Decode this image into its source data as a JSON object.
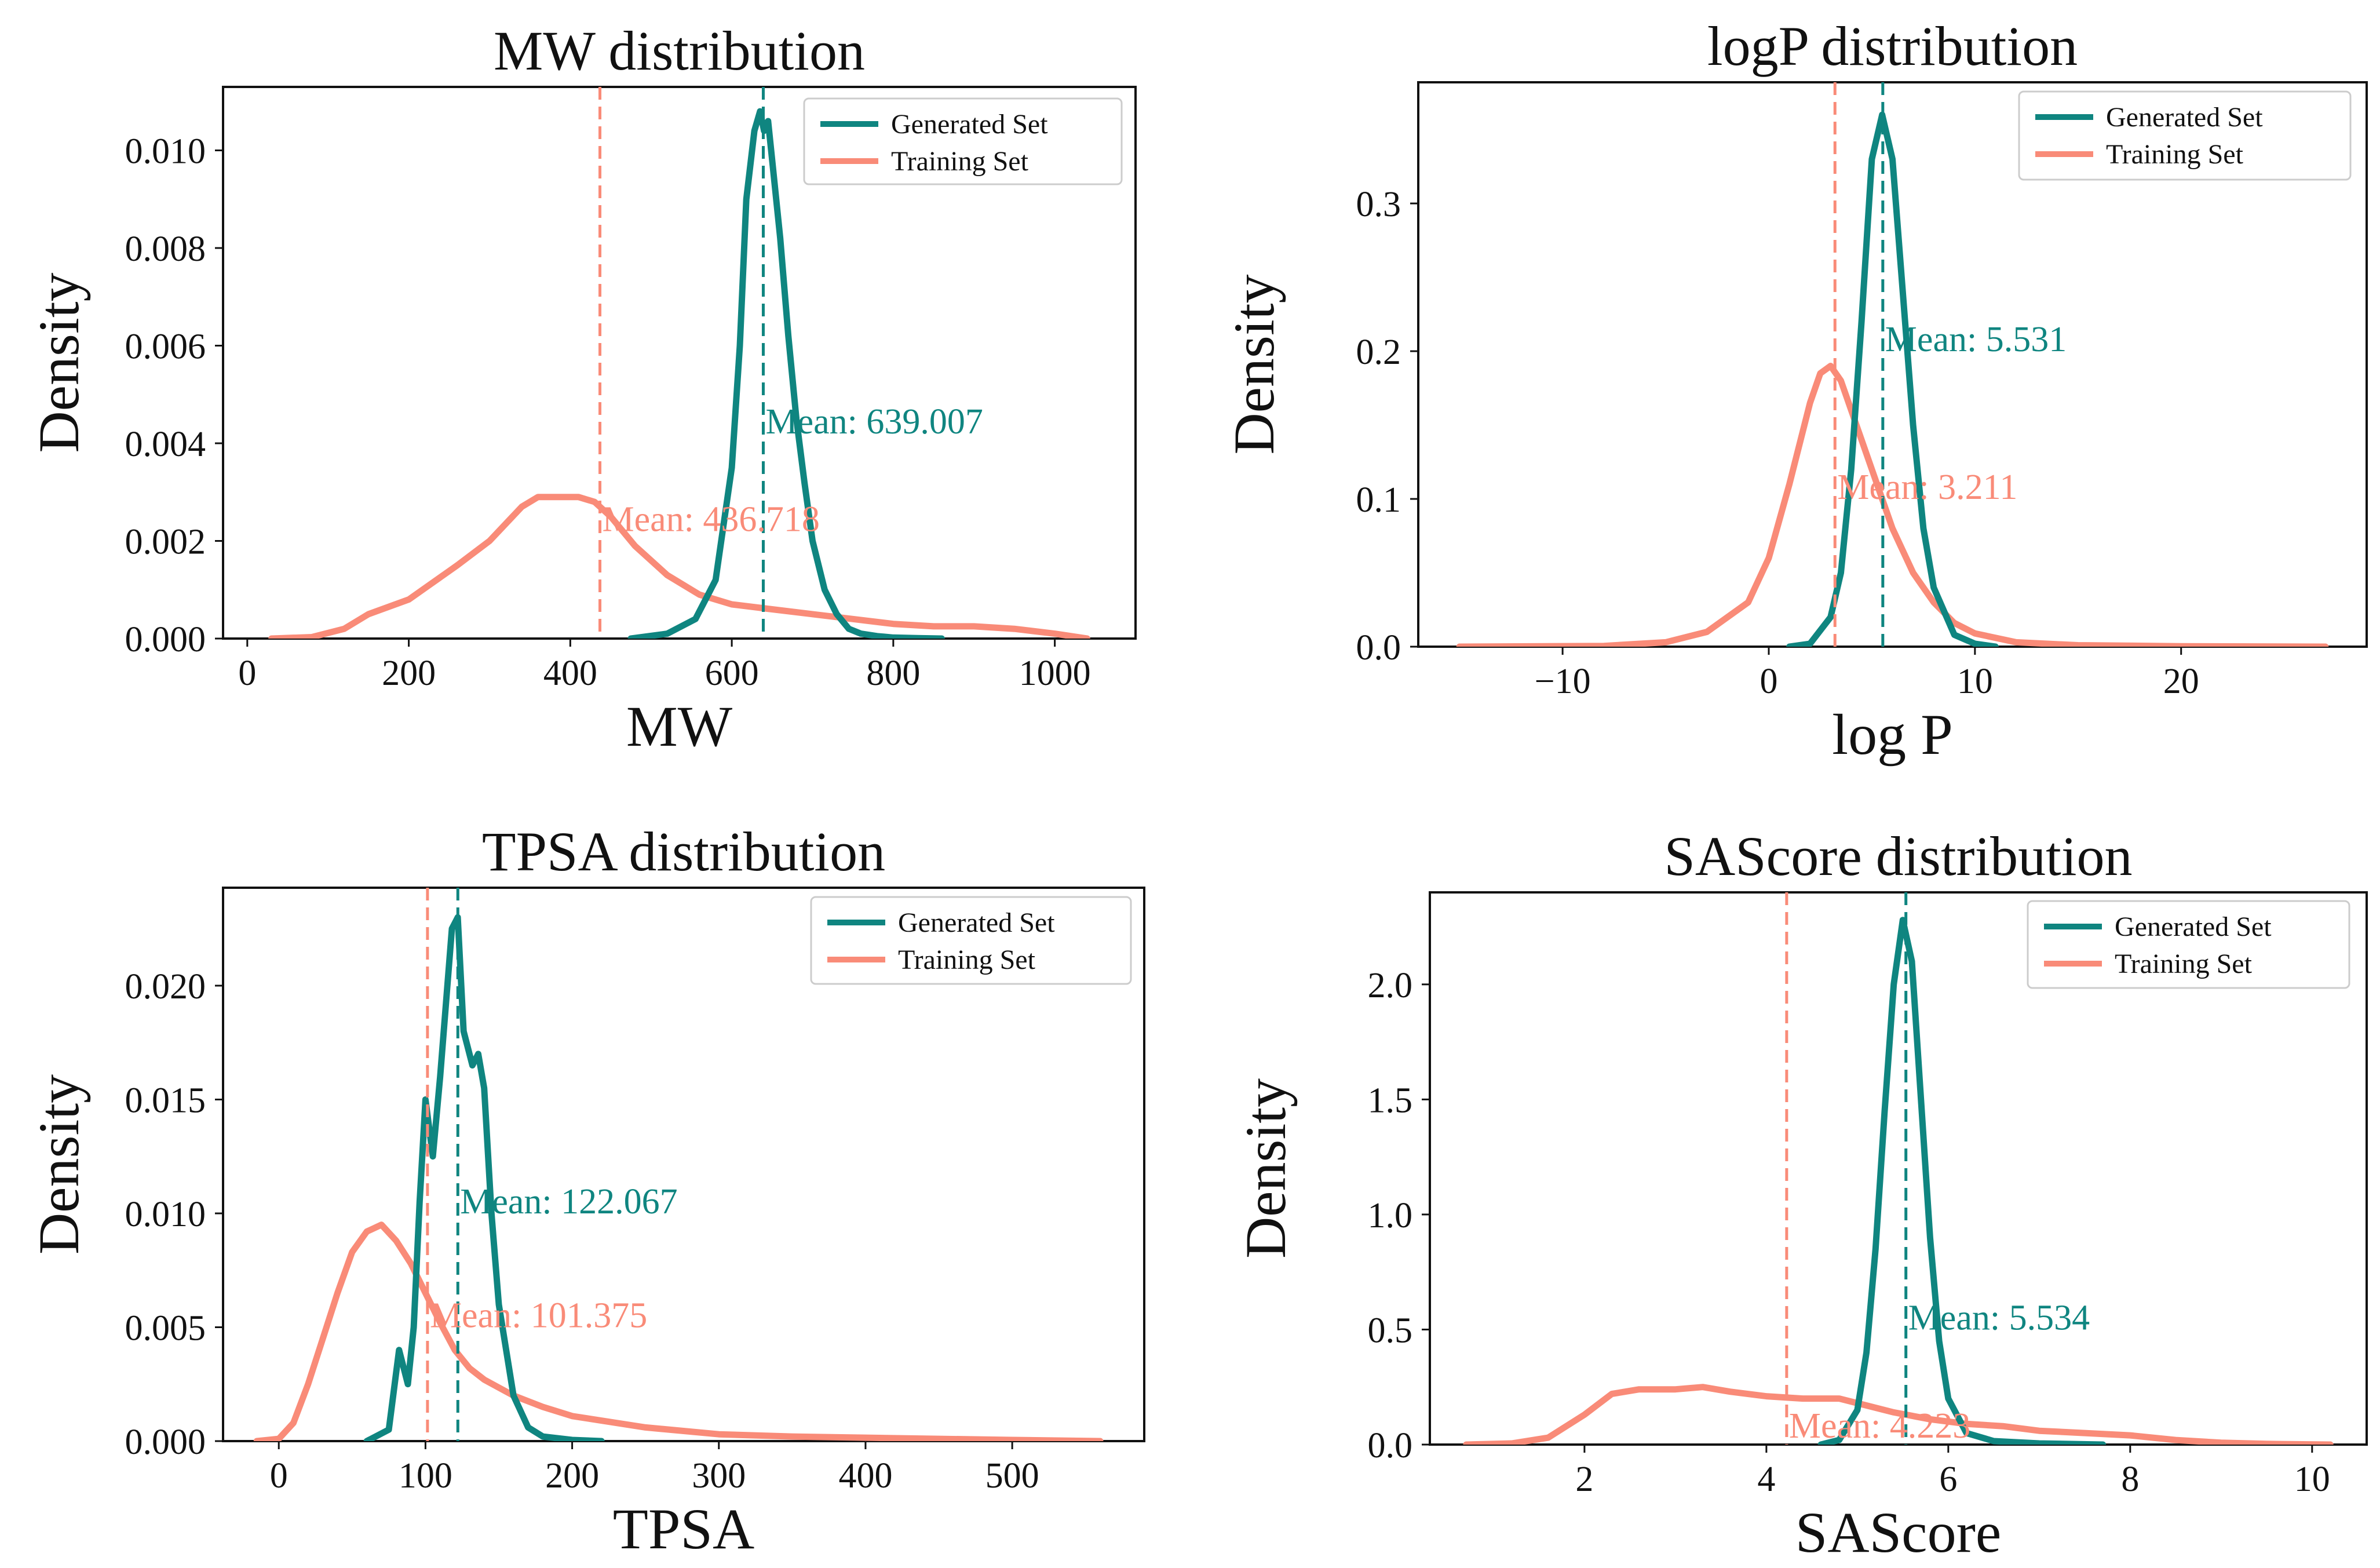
{
  "colors": {
    "generated": "#0f8580",
    "training": "#f98b78"
  },
  "chart_data": [
    {
      "type": "line",
      "title": "MW distribution",
      "xlabel": "MW",
      "ylabel": "Density",
      "xlim": [
        -30,
        1100
      ],
      "ylim": [
        0,
        0.0113
      ],
      "xticks": [
        0,
        200,
        400,
        600,
        800,
        1000
      ],
      "xtick_labels": [
        "0",
        "200",
        "400",
        "600",
        "800",
        "1000"
      ],
      "yticks": [
        0,
        0.002,
        0.004,
        0.006,
        0.008,
        0.01
      ],
      "ytick_labels": [
        "0.000",
        "0.002",
        "0.004",
        "0.006",
        "0.008",
        "0.010"
      ],
      "legend": [
        "Generated Set",
        "Training Set"
      ],
      "legend_position": "top-right",
      "series": [
        {
          "name": "Generated Set",
          "color": "#0f8580",
          "x": [
            475,
            520,
            555,
            580,
            600,
            610,
            618,
            628,
            635,
            640,
            645,
            650,
            660,
            670,
            680,
            690,
            700,
            715,
            730,
            745,
            760,
            780,
            800,
            830,
            860
          ],
          "y": [
            0,
            0.0001,
            0.0004,
            0.0012,
            0.0035,
            0.006,
            0.009,
            0.0104,
            0.0108,
            0.0104,
            0.0106,
            0.0098,
            0.0082,
            0.0062,
            0.0045,
            0.0032,
            0.002,
            0.001,
            0.0005,
            0.0002,
            0.0001,
            5e-05,
            2e-05,
            1e-05,
            0
          ]
        },
        {
          "name": "Training Set",
          "color": "#f98b78",
          "x": [
            30,
            80,
            120,
            150,
            200,
            260,
            300,
            340,
            360,
            380,
            410,
            430,
            450,
            480,
            520,
            560,
            600,
            650,
            700,
            750,
            800,
            850,
            900,
            950,
            1000,
            1040
          ],
          "y": [
            0,
            3e-05,
            0.0002,
            0.0005,
            0.0008,
            0.0015,
            0.002,
            0.0027,
            0.0029,
            0.0029,
            0.0029,
            0.0028,
            0.0025,
            0.0019,
            0.0013,
            0.0009,
            0.0007,
            0.0006,
            0.0005,
            0.0004,
            0.0003,
            0.00025,
            0.00025,
            0.0002,
            0.0001,
            0
          ]
        }
      ],
      "means": [
        {
          "label": "Mean: 639.007",
          "value": 639.007,
          "color": "#0f8580",
          "label_y": 0.0042
        },
        {
          "label": "Mean: 436.718",
          "value": 436.718,
          "color": "#f98b78",
          "label_y": 0.0022
        }
      ]
    },
    {
      "type": "line",
      "title": "logP distribution",
      "xlabel": "log P",
      "ylabel": "Density",
      "xlim": [
        -17,
        29
      ],
      "ylim": [
        0,
        0.382
      ],
      "xticks": [
        -10,
        0,
        10,
        20
      ],
      "xtick_labels": [
        "−10",
        "0",
        "10",
        "20"
      ],
      "yticks": [
        0,
        0.1,
        0.2,
        0.3
      ],
      "ytick_labels": [
        "0.0",
        "0.1",
        "0.2",
        "0.3"
      ],
      "legend": [
        "Generated Set",
        "Training Set"
      ],
      "legend_position": "top-right",
      "series": [
        {
          "name": "Generated Set",
          "color": "#0f8580",
          "x": [
            1,
            2,
            3,
            3.5,
            4,
            4.5,
            5,
            5.5,
            6,
            6.5,
            7,
            7.5,
            8,
            9,
            10,
            11
          ],
          "y": [
            0,
            0.002,
            0.02,
            0.05,
            0.12,
            0.22,
            0.33,
            0.36,
            0.33,
            0.24,
            0.15,
            0.08,
            0.04,
            0.008,
            0.002,
            0
          ]
        },
        {
          "name": "Training Set",
          "color": "#f98b78",
          "x": [
            -15,
            -8,
            -5,
            -3,
            -1,
            0,
            1,
            2,
            2.5,
            3,
            3.5,
            4,
            5,
            6,
            7,
            8,
            9,
            10,
            12,
            15,
            20,
            27
          ],
          "y": [
            0,
            0.0005,
            0.003,
            0.01,
            0.03,
            0.06,
            0.11,
            0.165,
            0.185,
            0.19,
            0.18,
            0.16,
            0.12,
            0.08,
            0.05,
            0.03,
            0.016,
            0.009,
            0.003,
            0.001,
            0.0003,
            0
          ]
        }
      ],
      "means": [
        {
          "label": "Mean: 5.531",
          "value": 5.531,
          "color": "#0f8580",
          "label_y": 0.2
        },
        {
          "label": "Mean: 3.211",
          "value": 3.211,
          "color": "#f98b78",
          "label_y": 0.1
        }
      ]
    },
    {
      "type": "line",
      "title": "TPSA distribution",
      "xlabel": "TPSA",
      "ylabel": "Density",
      "xlim": [
        -38,
        590
      ],
      "ylim": [
        0,
        0.0243
      ],
      "xticks": [
        0,
        100,
        200,
        300,
        400,
        500
      ],
      "xtick_labels": [
        "0",
        "100",
        "200",
        "300",
        "400",
        "500"
      ],
      "yticks": [
        0,
        0.005,
        0.01,
        0.015,
        0.02
      ],
      "ytick_labels": [
        "0.000",
        "0.005",
        "0.010",
        "0.015",
        "0.020"
      ],
      "legend": [
        "Generated Set",
        "Training Set"
      ],
      "legend_position": "top-right",
      "series": [
        {
          "name": "Generated Set",
          "color": "#0f8580",
          "x": [
            60,
            75,
            82,
            88,
            92,
            96,
            100,
            105,
            110,
            118,
            122,
            126,
            132,
            136,
            140,
            145,
            150,
            160,
            170,
            180,
            200,
            220
          ],
          "y": [
            0,
            0.0005,
            0.004,
            0.0025,
            0.005,
            0.0105,
            0.015,
            0.0125,
            0.016,
            0.0225,
            0.023,
            0.018,
            0.0165,
            0.017,
            0.0155,
            0.01,
            0.006,
            0.002,
            0.0006,
            0.0002,
            5e-05,
            0
          ]
        },
        {
          "name": "Training Set",
          "color": "#f98b78",
          "x": [
            -15,
            0,
            10,
            20,
            30,
            40,
            50,
            60,
            70,
            80,
            90,
            100,
            110,
            120,
            130,
            140,
            160,
            180,
            200,
            250,
            300,
            350,
            400,
            450,
            500,
            560
          ],
          "y": [
            0,
            0.0001,
            0.0008,
            0.0025,
            0.0045,
            0.0065,
            0.0083,
            0.0092,
            0.0095,
            0.0088,
            0.0078,
            0.0065,
            0.0052,
            0.004,
            0.0032,
            0.0027,
            0.002,
            0.0015,
            0.0011,
            0.0006,
            0.0003,
            0.0002,
            0.00015,
            0.0001,
            5e-05,
            0
          ]
        }
      ],
      "means": [
        {
          "label": "Mean: 122.067",
          "value": 122.067,
          "color": "#0f8580",
          "label_y": 0.01
        },
        {
          "label": "Mean: 101.375",
          "value": 101.375,
          "color": "#f98b78",
          "label_y": 0.005
        }
      ]
    },
    {
      "type": "line",
      "title": "SAScore distribution",
      "xlabel": "SAScore",
      "ylabel": "Density",
      "xlim": [
        0.3,
        10.6
      ],
      "ylim": [
        0,
        2.4
      ],
      "xticks": [
        2,
        4,
        6,
        8,
        10
      ],
      "xtick_labels": [
        "2",
        "4",
        "6",
        "8",
        "10"
      ],
      "yticks": [
        0,
        0.5,
        1.0,
        1.5,
        2.0
      ],
      "ytick_labels": [
        "0.0",
        "0.5",
        "1.0",
        "1.5",
        "2.0"
      ],
      "legend": [
        "Generated Set",
        "Training Set"
      ],
      "legend_position": "top-right",
      "series": [
        {
          "name": "Generated Set",
          "color": "#0f8580",
          "x": [
            4.6,
            4.8,
            5.0,
            5.1,
            5.2,
            5.3,
            5.4,
            5.5,
            5.6,
            5.7,
            5.8,
            5.9,
            6.0,
            6.2,
            6.5,
            7.0,
            7.7
          ],
          "y": [
            0,
            0.02,
            0.15,
            0.4,
            0.85,
            1.45,
            2.0,
            2.28,
            2.1,
            1.5,
            0.9,
            0.45,
            0.2,
            0.05,
            0.015,
            0.005,
            0
          ]
        },
        {
          "name": "Training Set",
          "color": "#f98b78",
          "x": [
            0.7,
            1.2,
            1.6,
            2.0,
            2.3,
            2.6,
            3.0,
            3.3,
            3.6,
            4.0,
            4.4,
            4.8,
            5.0,
            5.4,
            5.8,
            6.2,
            6.6,
            7.0,
            7.5,
            8.0,
            8.5,
            9.0,
            9.5,
            10.2
          ],
          "y": [
            0,
            0.005,
            0.03,
            0.13,
            0.22,
            0.24,
            0.24,
            0.25,
            0.23,
            0.21,
            0.2,
            0.2,
            0.18,
            0.14,
            0.11,
            0.09,
            0.08,
            0.06,
            0.05,
            0.04,
            0.02,
            0.008,
            0.003,
            0
          ]
        }
      ],
      "means": [
        {
          "label": "Mean: 5.534",
          "value": 5.534,
          "color": "#0f8580",
          "label_y": 0.5
        },
        {
          "label": "Mean: 4.223",
          "value": 4.223,
          "color": "#f98b78",
          "label_y": 0.03
        }
      ]
    }
  ]
}
